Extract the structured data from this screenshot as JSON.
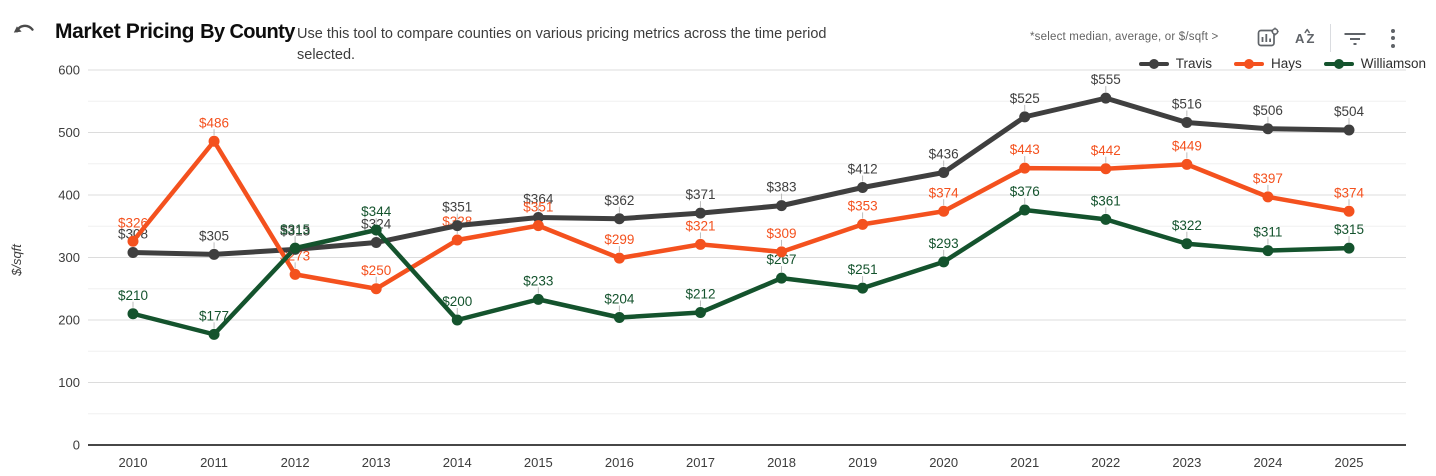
{
  "header": {
    "back_label": "undo",
    "title_primary": "Market Pricing",
    "title_secondary": "By County",
    "description": "Use this tool to compare counties on various pricing metrics across the time period selected.",
    "note": "*select median, average, or $/sqft >",
    "toolbar_icons": [
      "chart-settings-icon",
      "sort-az-icon",
      "filter-icon",
      "more-menu-icon"
    ]
  },
  "chart_data": {
    "type": "line",
    "title": "Market Pricing By County",
    "x": [
      "2010",
      "2011",
      "2012",
      "2013",
      "2014",
      "2015",
      "2016",
      "2017",
      "2018",
      "2019",
      "2020",
      "2021",
      "2022",
      "2023",
      "2024",
      "2025"
    ],
    "xlabel": "",
    "ylabel": "$/sqft",
    "ylim": [
      0,
      600
    ],
    "yticks": [
      0,
      100,
      200,
      300,
      400,
      500,
      600
    ],
    "grid": true,
    "legend_position": "top-right",
    "label_prefix": "$",
    "series": [
      {
        "name": "Travis",
        "color": "#3f3f3f",
        "values": [
          308,
          305,
          313,
          324,
          351,
          364,
          362,
          371,
          383,
          412,
          436,
          525,
          555,
          516,
          506,
          504
        ]
      },
      {
        "name": "Hays",
        "color": "#f4511e",
        "values": [
          326,
          486,
          273,
          250,
          328,
          351,
          299,
          321,
          309,
          353,
          374,
          443,
          442,
          449,
          397,
          374
        ]
      },
      {
        "name": "Williamson",
        "color": "#14532d",
        "values": [
          210,
          177,
          315,
          344,
          200,
          233,
          204,
          212,
          267,
          251,
          293,
          376,
          361,
          322,
          311,
          315
        ]
      }
    ]
  },
  "style": {
    "grid_major": "#dcdcdc",
    "grid_minor": "#f0f0f0",
    "axis_line": "#474747",
    "tick_text": "#3c3c3c",
    "leader_tick": "#bdbdbd",
    "icon_color": "#5f6368"
  }
}
